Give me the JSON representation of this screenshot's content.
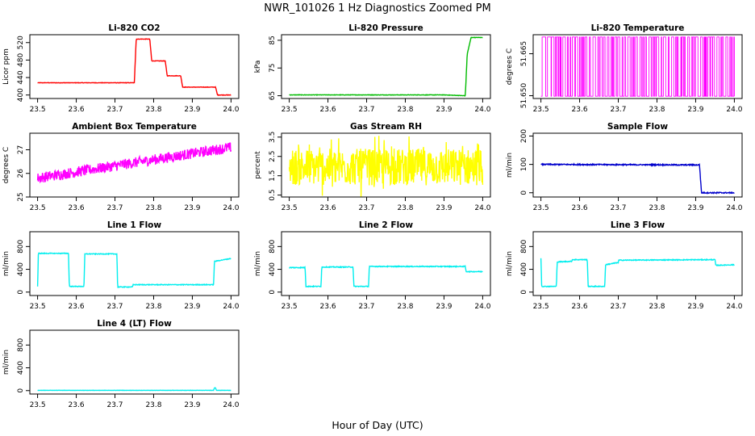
{
  "figure": {
    "title": "NWR_101026  1 Hz Diagnostics Zoomed PM",
    "xlabel": "Hour of Day (UTC)"
  },
  "chart_data": [
    {
      "type": "line",
      "id": "co2",
      "title": "Li-820 CO2",
      "ylabel": "Licor ppm",
      "color": "#ff0000",
      "xlim": [
        23.48,
        24.02
      ],
      "ylim": [
        392,
        538
      ],
      "xticks": [
        "23.5",
        "23.6",
        "23.7",
        "23.8",
        "23.9",
        "24.0"
      ],
      "yticks": [
        400,
        440,
        480,
        520
      ],
      "noise": 1,
      "series": [
        {
          "name": "CO2",
          "x": [
            23.5,
            23.75,
            23.755,
            23.79,
            23.795,
            23.83,
            23.835,
            23.87,
            23.875,
            23.96,
            23.965,
            24.0
          ],
          "y": [
            428,
            428,
            528,
            528,
            478,
            478,
            444,
            444,
            418,
            418,
            400,
            400
          ]
        }
      ]
    },
    {
      "type": "line",
      "id": "pressure",
      "title": "Li-820 Pressure",
      "ylabel": "kPa",
      "color": "#00bb00",
      "xlim": [
        23.48,
        24.02
      ],
      "ylim": [
        64,
        87
      ],
      "xticks": [
        "23.5",
        "23.6",
        "23.7",
        "23.8",
        "23.9",
        "24.0"
      ],
      "yticks": [
        65,
        75,
        85
      ],
      "noise": 0.15,
      "series": [
        {
          "name": "Pressure",
          "x": [
            23.5,
            23.9,
            23.955,
            23.96,
            23.97,
            24.0
          ],
          "y": [
            65.3,
            65.3,
            65,
            80,
            86,
            86
          ]
        }
      ]
    },
    {
      "type": "line",
      "id": "licor_temp",
      "title": "Li-820 Temperature",
      "ylabel": "degrees C",
      "color": "#ff00ff",
      "xlim": [
        23.48,
        24.02
      ],
      "ylim": [
        51.649,
        51.6718
      ],
      "xticks": [
        "23.5",
        "23.6",
        "23.7",
        "23.8",
        "23.9",
        "24.0"
      ],
      "yticks": [
        "51.650",
        "51.665"
      ],
      "ytick_values": [
        51.65,
        51.665
      ],
      "special": "binary",
      "series": [
        {
          "name": "Temperature",
          "x": [
            23.5,
            24.0
          ],
          "low": 51.6498,
          "high": 51.671
        }
      ]
    },
    {
      "type": "line",
      "id": "ambient_temp",
      "title": "Ambient Box Temperature",
      "ylabel": "degrees C",
      "color": "#ff00ff",
      "xlim": [
        23.48,
        24.02
      ],
      "ylim": [
        25.0,
        27.7
      ],
      "xticks": [
        "23.5",
        "23.6",
        "23.7",
        "23.8",
        "23.9",
        "24.0"
      ],
      "yticks": [
        25.0,
        26.0,
        27.0
      ],
      "noise": 0.45,
      "series": [
        {
          "name": "Ambient",
          "x": [
            23.5,
            24.0
          ],
          "y": [
            25.8,
            27.1
          ]
        }
      ]
    },
    {
      "type": "line",
      "id": "rh",
      "title": "Gas Stream RH",
      "ylabel": "percent",
      "color": "#ffff00",
      "xlim": [
        23.48,
        24.02
      ],
      "ylim": [
        0.4,
        3.7
      ],
      "xticks": [
        "23.5",
        "23.6",
        "23.7",
        "23.8",
        "23.9",
        "24.0"
      ],
      "yticks": [
        0.5,
        1.5,
        2.5,
        3.5
      ],
      "noise": 1.9,
      "series": [
        {
          "name": "RH",
          "x": [
            23.5,
            24.0
          ],
          "y": [
            1.95,
            1.95
          ]
        }
      ]
    },
    {
      "type": "line",
      "id": "sample_flow",
      "title": "Sample Flow",
      "ylabel": "ml/min",
      "color": "#0000cc",
      "xlim": [
        23.48,
        24.02
      ],
      "ylim": [
        -15,
        210
      ],
      "xticks": [
        "23.5",
        "23.6",
        "23.7",
        "23.8",
        "23.9",
        "24.0"
      ],
      "yticks": [
        0,
        100,
        200
      ],
      "noise": 4,
      "series": [
        {
          "name": "Sample",
          "x": [
            23.5,
            23.91,
            23.915,
            24.0
          ],
          "y": [
            100,
            98,
            0,
            0
          ]
        }
      ]
    },
    {
      "type": "line",
      "id": "line1",
      "title": "Line 1 Flow",
      "ylabel": "ml/min",
      "color": "#00eeee",
      "xlim": [
        23.48,
        24.02
      ],
      "ylim": [
        -60,
        1060
      ],
      "xticks": [
        "23.5",
        "23.6",
        "23.7",
        "23.8",
        "23.9",
        "24.0"
      ],
      "yticks": [
        0,
        400,
        800
      ],
      "noise": 12,
      "series": [
        {
          "name": "Line 1",
          "x": [
            23.5,
            23.502,
            23.58,
            23.582,
            23.62,
            23.622,
            23.705,
            23.707,
            23.745,
            23.747,
            23.955,
            23.957,
            24.0
          ],
          "y": [
            100,
            680,
            680,
            100,
            100,
            670,
            670,
            90,
            90,
            130,
            130,
            540,
            590
          ]
        }
      ]
    },
    {
      "type": "line",
      "id": "line2",
      "title": "Line 2 Flow",
      "ylabel": "ml/min",
      "color": "#00eeee",
      "xlim": [
        23.48,
        24.02
      ],
      "ylim": [
        -60,
        1060
      ],
      "xticks": [
        "23.5",
        "23.6",
        "23.7",
        "23.8",
        "23.9",
        "24.0"
      ],
      "yticks": [
        0,
        400,
        800
      ],
      "noise": 14,
      "series": [
        {
          "name": "Line 2",
          "x": [
            23.5,
            23.541,
            23.543,
            23.582,
            23.584,
            23.665,
            23.667,
            23.705,
            23.707,
            23.955,
            23.957,
            24.0
          ],
          "y": [
            430,
            430,
            100,
            100,
            440,
            440,
            100,
            100,
            450,
            450,
            360,
            360
          ]
        }
      ]
    },
    {
      "type": "line",
      "id": "line3",
      "title": "Line 3 Flow",
      "ylabel": "ml/min",
      "color": "#00eeee",
      "xlim": [
        23.48,
        24.02
      ],
      "ylim": [
        -60,
        1060
      ],
      "xticks": [
        "23.5",
        "23.6",
        "23.7",
        "23.8",
        "23.9",
        "24.0"
      ],
      "yticks": [
        0,
        400,
        800
      ],
      "noise": 14,
      "series": [
        {
          "name": "Line 3",
          "x": [
            23.5,
            23.502,
            23.54,
            23.542,
            23.58,
            23.58,
            23.62,
            23.622,
            23.665,
            23.667,
            23.7,
            23.7,
            23.95,
            23.952,
            24.0
          ],
          "y": [
            600,
            100,
            100,
            530,
            540,
            570,
            570,
            100,
            100,
            480,
            520,
            560,
            570,
            470,
            480
          ]
        }
      ]
    },
    {
      "type": "line",
      "id": "line4",
      "title": "Line 4 (LT) Flow",
      "ylabel": "ml/min",
      "color": "#00eeee",
      "xlim": [
        23.48,
        24.02
      ],
      "ylim": [
        -60,
        1060
      ],
      "xticks": [
        "23.5",
        "23.6",
        "23.7",
        "23.8",
        "23.9",
        "24.0"
      ],
      "yticks": [
        0,
        400,
        800
      ],
      "noise": 3,
      "series": [
        {
          "name": "Line 4",
          "x": [
            23.5,
            23.955,
            23.957,
            23.96,
            23.962,
            24.0
          ],
          "y": [
            5,
            5,
            50,
            50,
            5,
            5
          ]
        }
      ]
    }
  ]
}
